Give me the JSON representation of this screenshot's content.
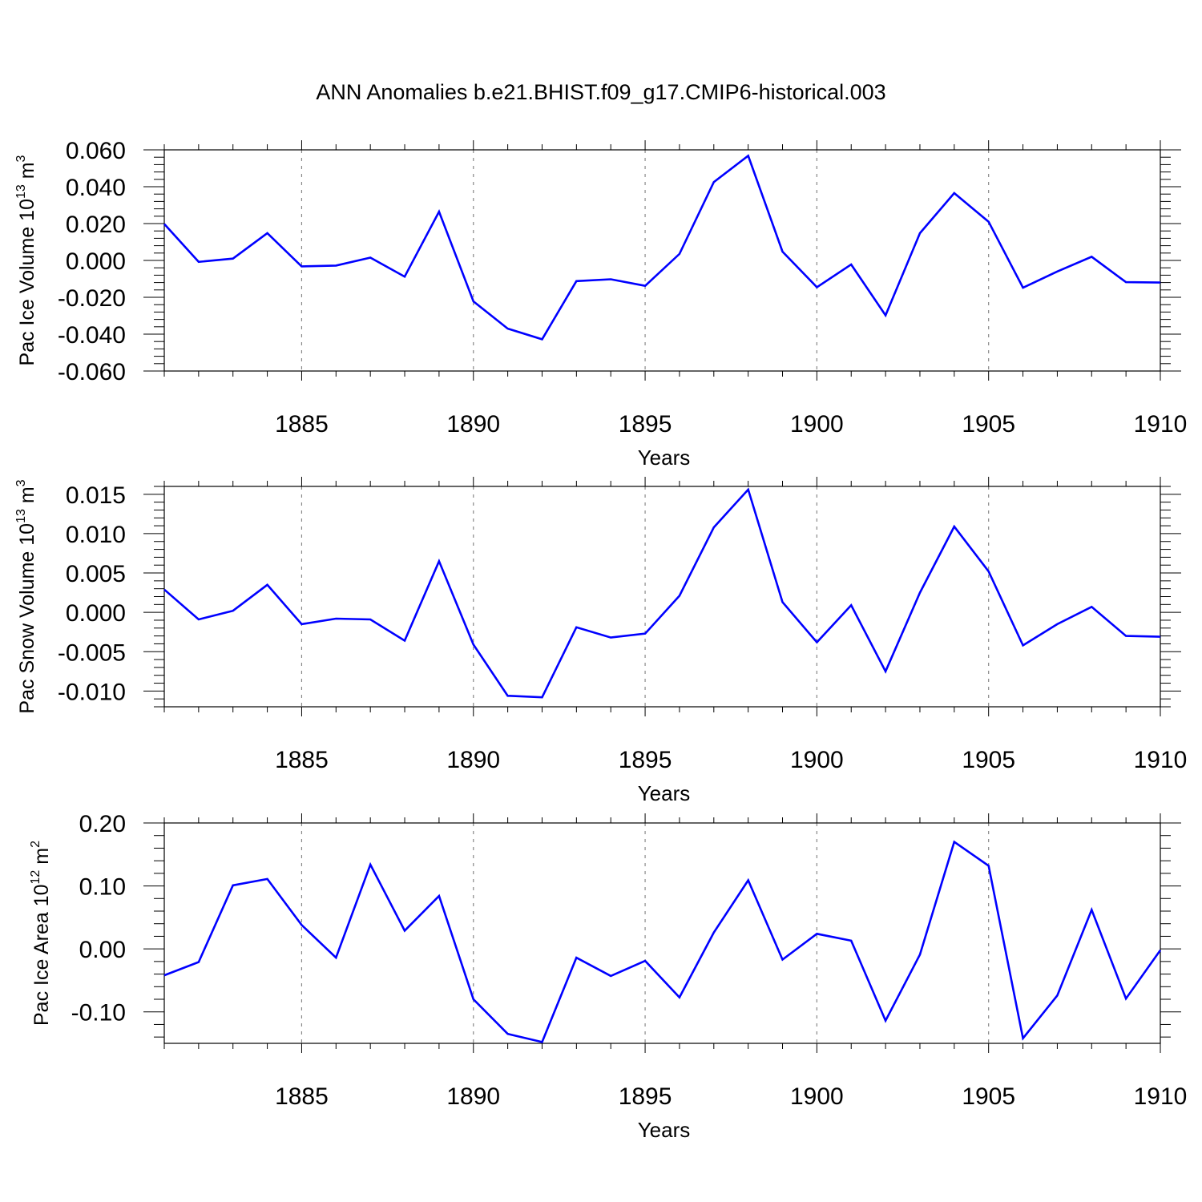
{
  "title": "ANN Anomalies b.e21.BHIST.f09_g17.CMIP6-historical.003",
  "colors": {
    "series": "#0000ff",
    "axis": "#000000",
    "grid": "#888888",
    "background": "#ffffff"
  },
  "chart_data": [
    {
      "type": "line",
      "ylabel": "Pac Ice Volume 10",
      "ylabel_exp": "13",
      "ylabel_unit": " m",
      "ylabel_unit_exp": "3",
      "xlabel": "Years",
      "xlim": [
        1881,
        1910
      ],
      "ylim": [
        -0.06,
        0.06
      ],
      "yticks": [
        -0.06,
        -0.04,
        -0.02,
        0.0,
        0.02,
        0.04,
        0.06
      ],
      "ytick_labels": [
        "-0.060",
        "-0.040",
        "-0.020",
        "0.000",
        "0.020",
        "0.040",
        "0.060"
      ],
      "xticks": [
        1885,
        1890,
        1895,
        1900,
        1905,
        1910
      ],
      "grid": "vertical dashed at major x ticks",
      "x": [
        1881,
        1882,
        1883,
        1884,
        1885,
        1886,
        1887,
        1888,
        1889,
        1890,
        1891,
        1892,
        1893,
        1894,
        1895,
        1896,
        1897,
        1898,
        1899,
        1900,
        1901,
        1902,
        1903,
        1904,
        1905,
        1906,
        1907,
        1908,
        1909,
        1910
      ],
      "values": [
        0.0198,
        -0.0008,
        0.001,
        0.0148,
        -0.0032,
        -0.0028,
        0.0015,
        -0.0088,
        0.0265,
        -0.0222,
        -0.037,
        -0.0428,
        -0.0112,
        -0.0102,
        -0.0138,
        0.0035,
        0.0425,
        0.0568,
        0.0048,
        -0.0145,
        -0.0022,
        -0.0298,
        0.0148,
        0.0365,
        0.021,
        -0.0148,
        -0.006,
        0.002,
        -0.0118,
        -0.012
      ]
    },
    {
      "type": "line",
      "ylabel": "Pac Snow Volume 10",
      "ylabel_exp": "13",
      "ylabel_unit": " m",
      "ylabel_unit_exp": "3",
      "xlabel": "Years",
      "xlim": [
        1881,
        1910
      ],
      "ylim": [
        -0.012,
        0.016
      ],
      "yticks": [
        -0.01,
        -0.005,
        0.0,
        0.005,
        0.01,
        0.015
      ],
      "ytick_labels": [
        "-0.010",
        "-0.005",
        "0.000",
        "0.005",
        "0.010",
        "0.015"
      ],
      "xticks": [
        1885,
        1890,
        1895,
        1900,
        1905,
        1910
      ],
      "grid": "vertical dashed at major x ticks",
      "x": [
        1881,
        1882,
        1883,
        1884,
        1885,
        1886,
        1887,
        1888,
        1889,
        1890,
        1891,
        1892,
        1893,
        1894,
        1895,
        1896,
        1897,
        1898,
        1899,
        1900,
        1901,
        1902,
        1903,
        1904,
        1905,
        1906,
        1907,
        1908,
        1909,
        1910
      ],
      "values": [
        0.0029,
        -0.0009,
        0.0002,
        0.0035,
        -0.0015,
        -0.0008,
        -0.0009,
        -0.0036,
        0.0065,
        -0.0041,
        -0.0106,
        -0.0108,
        -0.0019,
        -0.0032,
        -0.0027,
        0.0021,
        0.0108,
        0.0156,
        0.0013,
        -0.0038,
        0.0009,
        -0.0075,
        0.0025,
        0.0109,
        0.0052,
        -0.0042,
        -0.0015,
        0.0007,
        -0.003,
        -0.0031
      ]
    },
    {
      "type": "line",
      "ylabel": "Pac Ice Area 10",
      "ylabel_exp": "12",
      "ylabel_unit": " m",
      "ylabel_unit_exp": "2",
      "xlabel": "Years",
      "xlim": [
        1881,
        1910
      ],
      "ylim": [
        -0.15,
        0.2
      ],
      "yticks": [
        -0.1,
        0.0,
        0.1,
        0.2
      ],
      "ytick_labels": [
        "-0.10",
        "0.00",
        "0.10",
        "0.20"
      ],
      "xticks": [
        1885,
        1890,
        1895,
        1900,
        1905,
        1910
      ],
      "grid": "vertical dashed at major x ticks",
      "x": [
        1881,
        1882,
        1883,
        1884,
        1885,
        1886,
        1887,
        1888,
        1889,
        1890,
        1891,
        1892,
        1893,
        1894,
        1895,
        1896,
        1897,
        1898,
        1899,
        1900,
        1901,
        1902,
        1903,
        1904,
        1905,
        1906,
        1907,
        1908,
        1909,
        1910
      ],
      "values": [
        -0.042,
        -0.021,
        0.101,
        0.111,
        0.038,
        -0.014,
        0.134,
        0.029,
        0.084,
        -0.08,
        -0.135,
        -0.148,
        -0.014,
        -0.043,
        -0.019,
        -0.077,
        0.026,
        0.109,
        -0.017,
        0.024,
        0.013,
        -0.114,
        -0.009,
        0.17,
        0.132,
        -0.142,
        -0.074,
        0.062,
        -0.079,
        -0.002
      ]
    }
  ]
}
